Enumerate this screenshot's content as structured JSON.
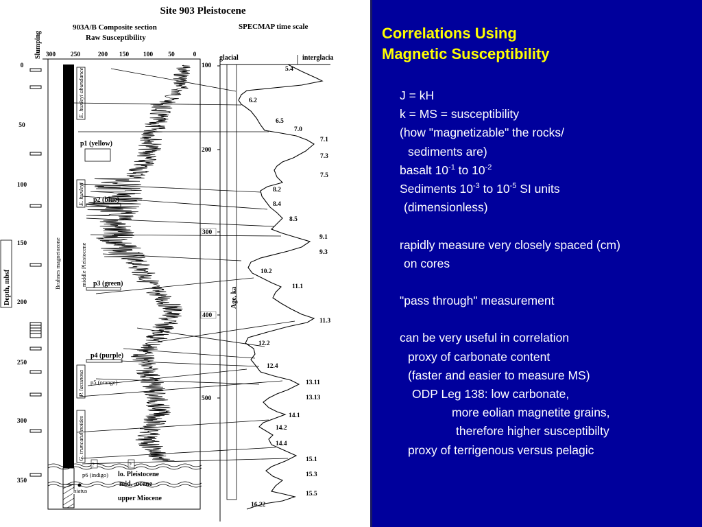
{
  "figure": {
    "title": "Site 903 Pleistocene",
    "left_header": [
      "903A/B Composite section",
      "Raw Susceptibility"
    ],
    "right_header": "SPECMAP time scale",
    "slumping_label": "Slumping",
    "ms_scale": [
      "300",
      "250",
      "200",
      "150",
      "100",
      "50",
      "0"
    ],
    "depth_axis_label": "Depth, mbsf",
    "depth_ticks": [
      "0",
      "50",
      "100",
      "150",
      "200",
      "250",
      "300",
      "350"
    ],
    "age_axis_label": "Age, ka",
    "age_ticks": [
      "100",
      "200",
      "300",
      "400",
      "500"
    ],
    "glacial_label": "glacial",
    "interglacial_label": "interglacia",
    "magnetozone_label": "Bruhnes magnetozone",
    "epoch_label": "middle Pleistocene",
    "biostrat_labels": [
      "E. huxleyi abundance",
      "E. huxleyi",
      "P. lacunosa",
      "G. truncatulinoides"
    ],
    "samples": [
      "p1 (yellow)",
      "p2 (blue)",
      "p3 (green)",
      "p4 (purple)",
      "p5 (orange)",
      "p6 (indigo)"
    ],
    "question_mark": "?",
    "boundary_labels": [
      "lo. Pleistocene",
      "mid. .ocene",
      "upper Miocene"
    ],
    "hiatus_label": "hiatus",
    "isotope_stages": [
      "5.4",
      "6.2",
      "6.5",
      "7.0",
      "7.1",
      "7.3",
      "7.5",
      "8.2",
      "8.4",
      "8.5",
      "9.1",
      "9.3",
      "10.2",
      "11.1",
      "11.3",
      "12.2",
      "12.4",
      "13.11",
      "13.13",
      "14.1",
      "14.2",
      "14.4",
      "15.1",
      "15.3",
      "15.5",
      "16.22"
    ]
  },
  "slide": {
    "title": [
      "Correlations Using",
      "Magnetic Susceptibility"
    ],
    "lines": [
      {
        "text": "J = kH",
        "indent": 0
      },
      {
        "text": "k = MS = susceptibility",
        "indent": 0
      },
      {
        "text": "(how \"magnetizable\" the rocks/",
        "indent": 0
      },
      {
        "text": "sediments are)",
        "indent": 12
      },
      {
        "text": "basalt 10",
        "sup1": "-1",
        "mid": " to 10",
        "sup2": "-2",
        "indent": 0
      },
      {
        "text": "Sediments 10",
        "sup1": "-3",
        "mid": " to 10",
        "sup2": "-5",
        "tail": " SI units",
        "indent": 0
      },
      {
        "text": "(dimensionless)",
        "indent": 6
      },
      {
        "text": "",
        "indent": 0
      },
      {
        "text": "rapidly measure very closely spaced (cm)",
        "indent": 0
      },
      {
        "text": "on cores",
        "indent": 6
      },
      {
        "text": "",
        "indent": 0
      },
      {
        "text": "\"pass through\" measurement",
        "indent": 0
      },
      {
        "text": "",
        "indent": 0
      },
      {
        "text": "can be very useful in correlation",
        "indent": 0
      },
      {
        "text": "proxy of carbonate content",
        "indent": 12
      },
      {
        "text": "(faster and easier to measure MS)",
        "indent": 12
      },
      {
        "text": "ODP Leg 138: low carbonate,",
        "indent": 18
      },
      {
        "text": "more eolian magnetite grains,",
        "indent": 76
      },
      {
        "text": "therefore higher susceptibilty",
        "indent": 82
      },
      {
        "text": "proxy of terrigenous versus pelagic",
        "indent": 12
      }
    ]
  },
  "colors": {
    "panel_bg": "#00009c",
    "title_color": "#ffff00",
    "body_text": "#ffffff"
  }
}
